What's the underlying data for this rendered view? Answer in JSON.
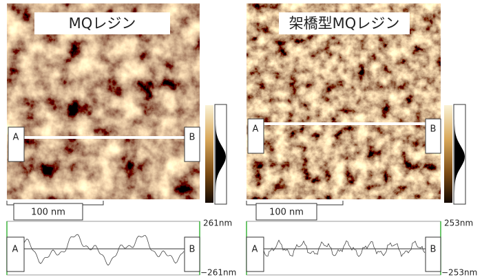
{
  "panels": [
    {
      "title": "MQレジン",
      "label_a": "A",
      "label_b": "B",
      "scale_bar": "100 nm",
      "profile_top": "261nm",
      "profile_bottom": "−261nm"
    },
    {
      "title": "架橋型MQレジン",
      "label_a": "A",
      "label_b": "B",
      "scale_bar": "100 nm",
      "profile_top": "253nm",
      "profile_bottom": "−253nm"
    }
  ]
}
